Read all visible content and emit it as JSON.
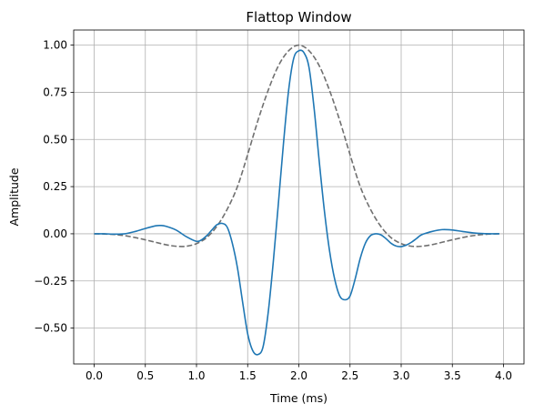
{
  "chart_data": {
    "type": "line",
    "title": "Flattop Window",
    "xlabel": "Time (ms)",
    "ylabel": "Amplitude",
    "xlim": [
      -0.2,
      4.2
    ],
    "ylim": [
      -0.69,
      1.08
    ],
    "grid": true,
    "legend": "none",
    "xticks": [
      0.0,
      0.5,
      1.0,
      1.5,
      2.0,
      2.5,
      3.0,
      3.5,
      4.0
    ],
    "xtick_labels": [
      "0.0",
      "0.5",
      "1.0",
      "1.5",
      "2.0",
      "2.5",
      "3.0",
      "3.5",
      "4.0"
    ],
    "yticks": [
      -0.5,
      -0.25,
      0.0,
      0.25,
      0.5,
      0.75,
      1.0
    ],
    "ytick_labels": [
      "−0.50",
      "−0.25",
      "0.00",
      "0.25",
      "0.50",
      "0.75",
      "1.00"
    ],
    "series": [
      {
        "style": "solid",
        "color": "#1f77b4",
        "x": [
          0.0,
          0.1,
          0.2,
          0.3,
          0.4,
          0.5,
          0.6,
          0.65,
          0.7,
          0.8,
          0.9,
          1.0,
          1.05,
          1.1,
          1.15,
          1.2,
          1.25,
          1.3,
          1.35,
          1.4,
          1.45,
          1.5,
          1.55,
          1.6,
          1.65,
          1.7,
          1.75,
          1.8,
          1.85,
          1.9,
          1.95,
          2.0,
          2.05,
          2.1,
          2.15,
          2.2,
          2.25,
          2.3,
          2.35,
          2.4,
          2.45,
          2.5,
          2.55,
          2.6,
          2.65,
          2.7,
          2.75,
          2.8,
          2.85,
          2.9,
          2.95,
          3.0,
          3.05,
          3.1,
          3.15,
          3.2,
          3.3,
          3.4,
          3.5,
          3.6,
          3.7,
          3.8,
          3.9,
          3.96
        ],
        "y": [
          0.0,
          0.0,
          -0.002,
          0.0,
          0.012,
          0.028,
          0.042,
          0.044,
          0.04,
          0.02,
          -0.015,
          -0.04,
          -0.032,
          -0.01,
          0.02,
          0.048,
          0.055,
          0.035,
          -0.05,
          -0.18,
          -0.36,
          -0.53,
          -0.62,
          -0.64,
          -0.6,
          -0.42,
          -0.15,
          0.16,
          0.48,
          0.76,
          0.93,
          0.97,
          0.96,
          0.88,
          0.66,
          0.38,
          0.12,
          -0.09,
          -0.24,
          -0.33,
          -0.35,
          -0.33,
          -0.24,
          -0.13,
          -0.05,
          -0.01,
          0.0,
          -0.005,
          -0.025,
          -0.05,
          -0.065,
          -0.068,
          -0.06,
          -0.045,
          -0.025,
          -0.005,
          0.012,
          0.022,
          0.02,
          0.012,
          0.005,
          0.001,
          0.0,
          0.0
        ]
      },
      {
        "style": "dashed",
        "color": "#707070",
        "x": [
          0.0,
          0.1,
          0.2,
          0.3,
          0.4,
          0.5,
          0.6,
          0.7,
          0.8,
          0.9,
          1.0,
          1.1,
          1.2,
          1.3,
          1.4,
          1.5,
          1.6,
          1.7,
          1.8,
          1.9,
          2.0,
          2.1,
          2.2,
          2.3,
          2.4,
          2.5,
          2.6,
          2.7,
          2.8,
          2.9,
          3.0,
          3.1,
          3.2,
          3.3,
          3.4,
          3.5,
          3.6,
          3.7,
          3.8,
          3.9,
          3.96
        ],
        "y": [
          0.0,
          -0.001,
          -0.004,
          -0.01,
          -0.02,
          -0.032,
          -0.045,
          -0.058,
          -0.066,
          -0.066,
          -0.052,
          -0.02,
          0.04,
          0.13,
          0.25,
          0.42,
          0.6,
          0.76,
          0.89,
          0.97,
          1.0,
          0.97,
          0.89,
          0.76,
          0.6,
          0.42,
          0.25,
          0.13,
          0.04,
          -0.02,
          -0.052,
          -0.066,
          -0.066,
          -0.058,
          -0.045,
          -0.032,
          -0.02,
          -0.01,
          -0.004,
          -0.001,
          0.0
        ]
      }
    ]
  }
}
